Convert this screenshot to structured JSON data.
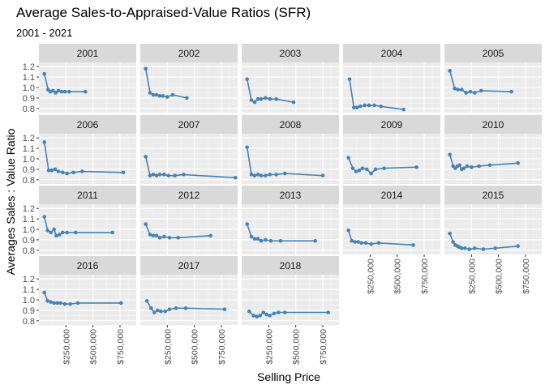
{
  "chart_data": {
    "type": "line",
    "title": "Average Sales-to-Appraised-Value Ratios (SFR)",
    "subtitle": "2001 - 2021",
    "xlabel": "Selling Price",
    "ylabel": "Averages Sales : Value Ratio",
    "xlim": [
      0,
      900000
    ],
    "ylim": [
      0.76,
      1.24
    ],
    "x_ticks": [
      250000,
      500000,
      750000
    ],
    "x_tick_labels": [
      "$250,000",
      "$500,000",
      "$750,000"
    ],
    "y_ticks": [
      0.8,
      0.9,
      1.0,
      1.1,
      1.2
    ],
    "y_tick_labels": [
      "0.8",
      "0.9",
      "1.0",
      "1.1",
      "1.2"
    ],
    "facet_columns": 5,
    "grid": true,
    "series_color": "#4682B4",
    "panels": [
      {
        "name": "2001",
        "x": [
          50000,
          85000,
          105000,
          130000,
          155000,
          180000,
          210000,
          240000,
          280000,
          430000
        ],
        "y": [
          1.13,
          0.98,
          0.96,
          0.97,
          0.95,
          0.97,
          0.96,
          0.96,
          0.96,
          0.96
        ]
      },
      {
        "name": "2002",
        "x": [
          50000,
          90000,
          120000,
          150000,
          180000,
          210000,
          250000,
          300000,
          430000
        ],
        "y": [
          1.18,
          0.95,
          0.93,
          0.93,
          0.92,
          0.92,
          0.91,
          0.93,
          0.9
        ]
      },
      {
        "name": "2003",
        "x": [
          50000,
          90000,
          120000,
          150000,
          180000,
          220000,
          260000,
          320000,
          480000
        ],
        "y": [
          1.08,
          0.88,
          0.86,
          0.89,
          0.89,
          0.9,
          0.89,
          0.89,
          0.86
        ]
      },
      {
        "name": "2004",
        "x": [
          60000,
          100000,
          130000,
          160000,
          200000,
          240000,
          290000,
          350000,
          560000
        ],
        "y": [
          1.08,
          0.81,
          0.81,
          0.82,
          0.83,
          0.83,
          0.83,
          0.82,
          0.79
        ]
      },
      {
        "name": "2005",
        "x": [
          50000,
          95000,
          125000,
          160000,
          200000,
          240000,
          280000,
          340000,
          620000
        ],
        "y": [
          1.16,
          0.99,
          0.98,
          0.98,
          0.95,
          0.96,
          0.95,
          0.97,
          0.96
        ]
      },
      {
        "name": "2006",
        "x": [
          50000,
          90000,
          120000,
          150000,
          180000,
          220000,
          260000,
          320000,
          400000,
          780000
        ],
        "y": [
          1.16,
          0.89,
          0.89,
          0.9,
          0.88,
          0.87,
          0.86,
          0.87,
          0.88,
          0.87
        ]
      },
      {
        "name": "2007",
        "x": [
          50000,
          90000,
          120000,
          150000,
          180000,
          220000,
          260000,
          320000,
          400000,
          880000
        ],
        "y": [
          1.02,
          0.84,
          0.85,
          0.84,
          0.85,
          0.85,
          0.84,
          0.84,
          0.85,
          0.82
        ]
      },
      {
        "name": "2008",
        "x": [
          50000,
          90000,
          120000,
          150000,
          180000,
          220000,
          260000,
          320000,
          400000,
          750000
        ],
        "y": [
          1.11,
          0.85,
          0.84,
          0.85,
          0.84,
          0.84,
          0.85,
          0.85,
          0.86,
          0.84
        ]
      },
      {
        "name": "2009",
        "x": [
          50000,
          90000,
          120000,
          150000,
          180000,
          220000,
          260000,
          300000,
          380000,
          680000
        ],
        "y": [
          1.01,
          0.91,
          0.88,
          0.89,
          0.91,
          0.9,
          0.86,
          0.9,
          0.91,
          0.92
        ]
      },
      {
        "name": "2010",
        "x": [
          50000,
          80000,
          100000,
          120000,
          140000,
          160000,
          180000,
          210000,
          250000,
          320000,
          420000,
          680000
        ],
        "y": [
          1.04,
          0.93,
          0.91,
          0.93,
          0.94,
          0.9,
          0.91,
          0.93,
          0.92,
          0.93,
          0.94,
          0.96
        ]
      },
      {
        "name": "2011",
        "x": [
          50000,
          80000,
          110000,
          140000,
          160000,
          190000,
          220000,
          260000,
          340000,
          680000
        ],
        "y": [
          1.12,
          0.99,
          0.97,
          1.0,
          0.94,
          0.95,
          0.97,
          0.97,
          0.97,
          0.97
        ]
      },
      {
        "name": "2012",
        "x": [
          50000,
          90000,
          120000,
          150000,
          180000,
          220000,
          270000,
          350000,
          650000
        ],
        "y": [
          1.05,
          0.95,
          0.94,
          0.94,
          0.92,
          0.93,
          0.92,
          0.92,
          0.94
        ]
      },
      {
        "name": "2013",
        "x": [
          50000,
          90000,
          120000,
          150000,
          180000,
          220000,
          270000,
          360000,
          680000
        ],
        "y": [
          1.05,
          0.93,
          0.91,
          0.91,
          0.89,
          0.9,
          0.89,
          0.89,
          0.89
        ]
      },
      {
        "name": "2014",
        "x": [
          50000,
          80000,
          110000,
          140000,
          170000,
          210000,
          260000,
          330000,
          650000
        ],
        "y": [
          0.99,
          0.89,
          0.88,
          0.88,
          0.87,
          0.87,
          0.86,
          0.87,
          0.85
        ]
      },
      {
        "name": "2015",
        "x": [
          50000,
          80000,
          100000,
          120000,
          140000,
          160000,
          190000,
          230000,
          280000,
          360000,
          470000,
          680000
        ],
        "y": [
          0.96,
          0.88,
          0.85,
          0.84,
          0.83,
          0.82,
          0.82,
          0.81,
          0.82,
          0.81,
          0.82,
          0.84
        ]
      },
      {
        "name": "2016",
        "x": [
          50000,
          80000,
          110000,
          140000,
          170000,
          200000,
          240000,
          290000,
          360000,
          760000
        ],
        "y": [
          1.07,
          0.99,
          0.98,
          0.97,
          0.97,
          0.97,
          0.96,
          0.96,
          0.97,
          0.97
        ]
      },
      {
        "name": "2017",
        "x": [
          60000,
          100000,
          130000,
          160000,
          190000,
          230000,
          270000,
          330000,
          420000,
          780000
        ],
        "y": [
          0.99,
          0.92,
          0.88,
          0.9,
          0.89,
          0.89,
          0.91,
          0.92,
          0.92,
          0.91
        ]
      },
      {
        "name": "2018",
        "x": [
          70000,
          110000,
          140000,
          170000,
          200000,
          230000,
          260000,
          300000,
          340000,
          400000,
          800000
        ],
        "y": [
          0.89,
          0.85,
          0.84,
          0.85,
          0.88,
          0.86,
          0.85,
          0.87,
          0.88,
          0.88,
          0.88
        ]
      }
    ]
  }
}
